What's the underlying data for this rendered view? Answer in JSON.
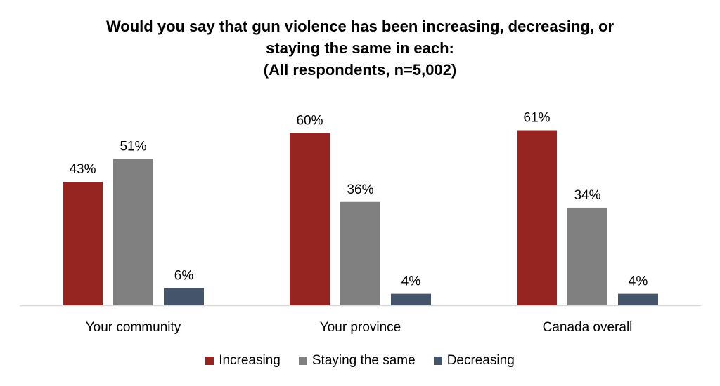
{
  "chart_data": {
    "type": "bar",
    "title_lines": [
      "Would you say that gun violence has been increasing, decreasing, or",
      "staying the same in each:",
      "(All respondents, n=5,002)"
    ],
    "categories": [
      "Your community",
      "Your province",
      "Canada overall"
    ],
    "series": [
      {
        "name": "Increasing",
        "color": "#962421",
        "values": [
          43,
          60,
          61
        ],
        "labels": [
          "43%",
          "60%",
          "61%"
        ]
      },
      {
        "name": "Staying the same",
        "color": "#808080",
        "values": [
          51,
          36,
          34
        ],
        "labels": [
          "51%",
          "36%",
          "34%"
        ]
      },
      {
        "name": "Decreasing",
        "color": "#44546a",
        "values": [
          6,
          4,
          4
        ],
        "labels": [
          "6%",
          "4%",
          "4%"
        ]
      }
    ],
    "ylim": [
      0,
      100
    ],
    "grid": false,
    "legend_position": "bottom"
  }
}
